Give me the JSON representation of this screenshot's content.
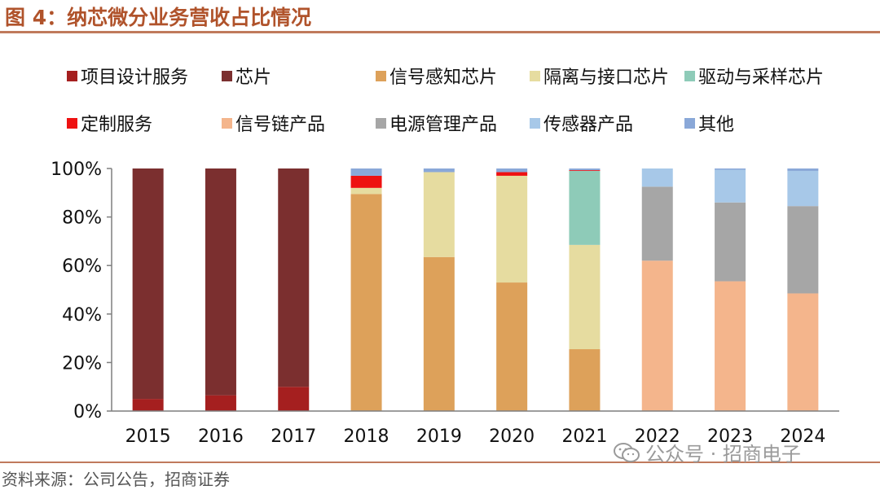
{
  "figure": {
    "title": "图 4：纳芯微分业务营收占比情况",
    "source": "资料来源：公司公告，招商证券",
    "watermark": "公众号 · 招商电子"
  },
  "chart_data": {
    "type": "bar",
    "stacked": true,
    "title": "",
    "xlabel": "",
    "ylabel": "",
    "ylim": [
      0,
      1
    ],
    "yticks": [
      "0%",
      "20%",
      "40%",
      "60%",
      "80%",
      "100%"
    ],
    "legend_position": "top",
    "categories": [
      "2015",
      "2016",
      "2017",
      "2018",
      "2019",
      "2020",
      "2021",
      "2022",
      "2023",
      "2024"
    ],
    "series": [
      {
        "name": "项目设计服务",
        "color": "#a51f1f",
        "values": [
          0.05,
          0.065,
          0.1,
          0,
          0,
          0,
          0,
          0,
          0,
          0
        ]
      },
      {
        "name": "芯片",
        "color": "#7b2f2f",
        "values": [
          0.95,
          0.935,
          0.9,
          0,
          0,
          0,
          0,
          0,
          0,
          0
        ]
      },
      {
        "name": "信号感知芯片",
        "color": "#dda15a",
        "values": [
          0,
          0,
          0,
          0.895,
          0.635,
          0.53,
          0.255,
          0,
          0,
          0
        ]
      },
      {
        "name": "隔离与接口芯片",
        "color": "#e6dca0",
        "values": [
          0,
          0,
          0,
          0.025,
          0.35,
          0.44,
          0.43,
          0,
          0,
          0
        ]
      },
      {
        "name": "驱动与采样芯片",
        "color": "#8ecbb8",
        "values": [
          0,
          0,
          0,
          0,
          0,
          0,
          0.305,
          0,
          0,
          0
        ]
      },
      {
        "name": "定制服务",
        "color": "#ee1111",
        "values": [
          0,
          0,
          0,
          0.05,
          0,
          0.015,
          0.003,
          0,
          0,
          0
        ]
      },
      {
        "name": "信号链产品",
        "color": "#f4b58c",
        "values": [
          0,
          0,
          0,
          0,
          0,
          0,
          0,
          0.62,
          0.535,
          0.485
        ]
      },
      {
        "name": "电源管理产品",
        "color": "#a6a6a6",
        "values": [
          0,
          0,
          0,
          0,
          0,
          0,
          0,
          0.305,
          0.325,
          0.36
        ]
      },
      {
        "name": "传感器产品",
        "color": "#a7c8e8",
        "values": [
          0,
          0,
          0,
          0,
          0,
          0,
          0,
          0.075,
          0.135,
          0.145
        ]
      },
      {
        "name": "其他",
        "color": "#8aa8d8",
        "values": [
          0,
          0,
          0,
          0.03,
          0.015,
          0.015,
          0.007,
          0,
          0.005,
          0.01
        ]
      }
    ]
  }
}
